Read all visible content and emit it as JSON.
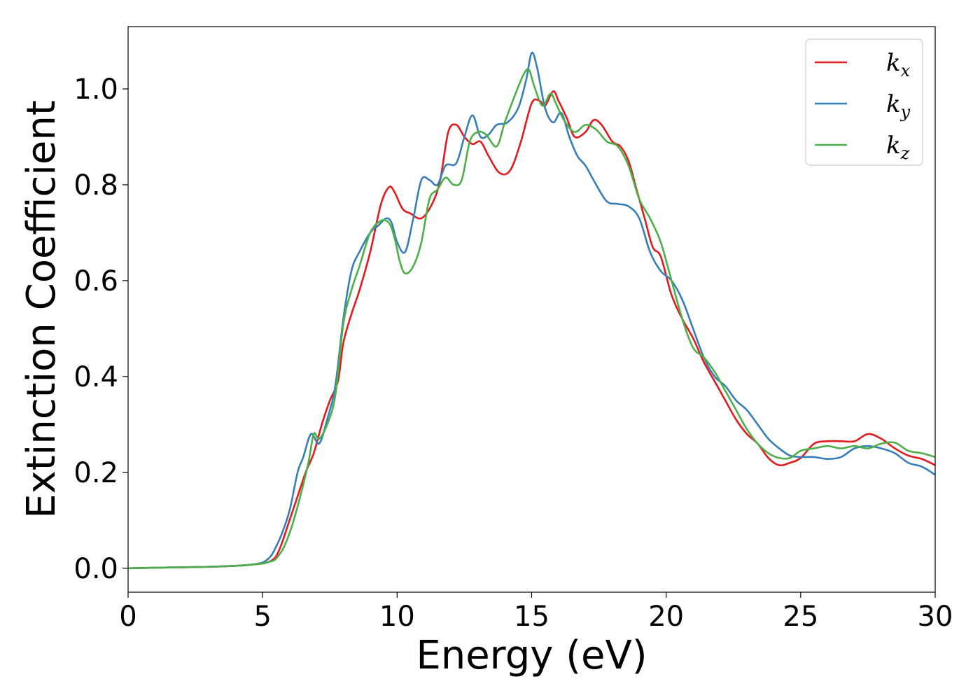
{
  "chart_data": {
    "type": "line",
    "title": "",
    "xlabel": "Energy (eV)",
    "ylabel": "Extinction Coefficient",
    "xlim": [
      0,
      30
    ],
    "ylim": [
      -0.05,
      1.13
    ],
    "xticks": [
      0,
      5,
      10,
      15,
      20,
      25,
      30
    ],
    "xtick_labels": [
      "0",
      "5",
      "10",
      "15",
      "20",
      "25",
      "30"
    ],
    "yticks": [
      0.0,
      0.2,
      0.4,
      0.6,
      0.8,
      1.0
    ],
    "ytick_labels": [
      "0.0",
      "0.2",
      "0.4",
      "0.6",
      "0.8",
      "1.0"
    ],
    "grid": false,
    "legend_position": "top-right",
    "series": [
      {
        "name": "kx",
        "label_main": "k",
        "label_sub": "x",
        "color": "#e41a1c",
        "x": [
          0,
          1,
          2,
          3,
          4,
          4.5,
          5,
          5.3,
          5.5,
          5.7,
          6.0,
          6.3,
          6.6,
          6.9,
          7.2,
          7.5,
          7.8,
          8.0,
          8.3,
          8.6,
          9.0,
          9.4,
          9.7,
          9.9,
          10.2,
          10.5,
          10.9,
          11.3,
          11.6,
          11.9,
          12.2,
          12.5,
          12.8,
          13.1,
          13.4,
          13.8,
          14.2,
          14.6,
          15.0,
          15.3,
          15.5,
          15.8,
          16.0,
          16.3,
          16.6,
          17.0,
          17.3,
          17.6,
          18.0,
          18.3,
          18.6,
          18.9,
          19.2,
          19.5,
          19.8,
          20.2,
          20.6,
          21.0,
          21.4,
          21.8,
          22.2,
          22.6,
          23.0,
          23.4,
          23.8,
          24.2,
          24.6,
          25.0,
          25.5,
          26.0,
          26.5,
          27.0,
          27.5,
          28.0,
          28.5,
          29.0,
          29.5,
          30.0
        ],
        "y": [
          0.0,
          0.001,
          0.002,
          0.003,
          0.005,
          0.007,
          0.01,
          0.015,
          0.025,
          0.05,
          0.1,
          0.15,
          0.2,
          0.24,
          0.3,
          0.35,
          0.39,
          0.47,
          0.53,
          0.58,
          0.66,
          0.76,
          0.795,
          0.785,
          0.75,
          0.74,
          0.73,
          0.76,
          0.81,
          0.91,
          0.925,
          0.9,
          0.885,
          0.89,
          0.86,
          0.825,
          0.83,
          0.89,
          0.97,
          0.975,
          0.965,
          0.995,
          0.975,
          0.94,
          0.9,
          0.91,
          0.935,
          0.925,
          0.89,
          0.88,
          0.85,
          0.79,
          0.73,
          0.67,
          0.65,
          0.57,
          0.52,
          0.48,
          0.43,
          0.39,
          0.35,
          0.31,
          0.28,
          0.26,
          0.23,
          0.215,
          0.22,
          0.23,
          0.26,
          0.265,
          0.265,
          0.265,
          0.28,
          0.27,
          0.25,
          0.235,
          0.228,
          0.215
        ]
      },
      {
        "name": "ky",
        "label_main": "k",
        "label_sub": "y",
        "color": "#377eb8",
        "x": [
          0,
          1,
          2,
          3,
          4,
          4.5,
          5,
          5.3,
          5.5,
          5.7,
          6.0,
          6.3,
          6.5,
          6.8,
          7.1,
          7.4,
          7.7,
          8.0,
          8.3,
          8.6,
          9.0,
          9.3,
          9.6,
          9.8,
          10.0,
          10.3,
          10.6,
          10.9,
          11.2,
          11.5,
          11.8,
          12.2,
          12.5,
          12.8,
          13.1,
          13.4,
          13.7,
          14.1,
          14.5,
          14.8,
          15.0,
          15.2,
          15.5,
          15.8,
          16.1,
          16.4,
          16.7,
          17.0,
          17.4,
          17.8,
          18.2,
          18.6,
          19.0,
          19.4,
          19.8,
          20.2,
          20.6,
          21.0,
          21.4,
          21.8,
          22.2,
          22.6,
          23.0,
          23.4,
          23.8,
          24.2,
          24.6,
          25.0,
          25.5,
          26.0,
          26.5,
          27.0,
          27.5,
          28.0,
          28.5,
          29.0,
          29.5,
          30.0
        ],
        "y": [
          0.0,
          0.001,
          0.002,
          0.003,
          0.005,
          0.007,
          0.012,
          0.025,
          0.045,
          0.07,
          0.12,
          0.2,
          0.23,
          0.28,
          0.26,
          0.31,
          0.38,
          0.52,
          0.62,
          0.66,
          0.7,
          0.715,
          0.73,
          0.72,
          0.68,
          0.66,
          0.73,
          0.81,
          0.81,
          0.8,
          0.84,
          0.845,
          0.9,
          0.945,
          0.9,
          0.905,
          0.925,
          0.93,
          0.96,
          1.02,
          1.075,
          1.045,
          0.96,
          0.93,
          0.95,
          0.9,
          0.86,
          0.84,
          0.8,
          0.765,
          0.76,
          0.755,
          0.73,
          0.66,
          0.62,
          0.6,
          0.56,
          0.5,
          0.44,
          0.4,
          0.38,
          0.35,
          0.33,
          0.3,
          0.27,
          0.25,
          0.235,
          0.232,
          0.232,
          0.228,
          0.232,
          0.25,
          0.255,
          0.25,
          0.24,
          0.22,
          0.212,
          0.195
        ]
      },
      {
        "name": "kz",
        "label_main": "k",
        "label_sub": "z",
        "color": "#4daf4a",
        "x": [
          0,
          1,
          2,
          3,
          4,
          4.5,
          5,
          5.3,
          5.5,
          5.8,
          6.1,
          6.4,
          6.7,
          6.9,
          7.1,
          7.4,
          7.7,
          8.0,
          8.3,
          8.6,
          9.0,
          9.4,
          9.7,
          9.9,
          10.1,
          10.3,
          10.6,
          10.9,
          11.2,
          11.5,
          11.8,
          12.1,
          12.4,
          12.7,
          13.0,
          13.3,
          13.7,
          14.0,
          14.4,
          14.7,
          14.9,
          15.1,
          15.4,
          15.7,
          15.9,
          16.2,
          16.6,
          17.0,
          17.4,
          17.8,
          18.2,
          18.6,
          19.0,
          19.4,
          19.8,
          20.2,
          20.6,
          21.0,
          21.4,
          21.8,
          22.2,
          22.6,
          23.0,
          23.4,
          23.8,
          24.2,
          24.6,
          25.0,
          25.5,
          26.0,
          26.5,
          27.0,
          27.5,
          28.0,
          28.5,
          29.0,
          29.5,
          30.0
        ],
        "y": [
          0.0,
          0.001,
          0.002,
          0.003,
          0.005,
          0.007,
          0.01,
          0.014,
          0.02,
          0.045,
          0.09,
          0.15,
          0.22,
          0.28,
          0.27,
          0.3,
          0.36,
          0.51,
          0.58,
          0.63,
          0.7,
          0.725,
          0.72,
          0.69,
          0.64,
          0.615,
          0.63,
          0.68,
          0.77,
          0.79,
          0.815,
          0.8,
          0.81,
          0.89,
          0.91,
          0.905,
          0.88,
          0.93,
          0.99,
          1.03,
          1.04,
          1.005,
          0.965,
          0.99,
          0.97,
          0.935,
          0.91,
          0.925,
          0.915,
          0.89,
          0.88,
          0.84,
          0.77,
          0.73,
          0.68,
          0.6,
          0.52,
          0.46,
          0.44,
          0.41,
          0.37,
          0.33,
          0.29,
          0.26,
          0.24,
          0.23,
          0.23,
          0.245,
          0.25,
          0.255,
          0.25,
          0.255,
          0.25,
          0.26,
          0.262,
          0.245,
          0.24,
          0.232
        ]
      }
    ]
  }
}
